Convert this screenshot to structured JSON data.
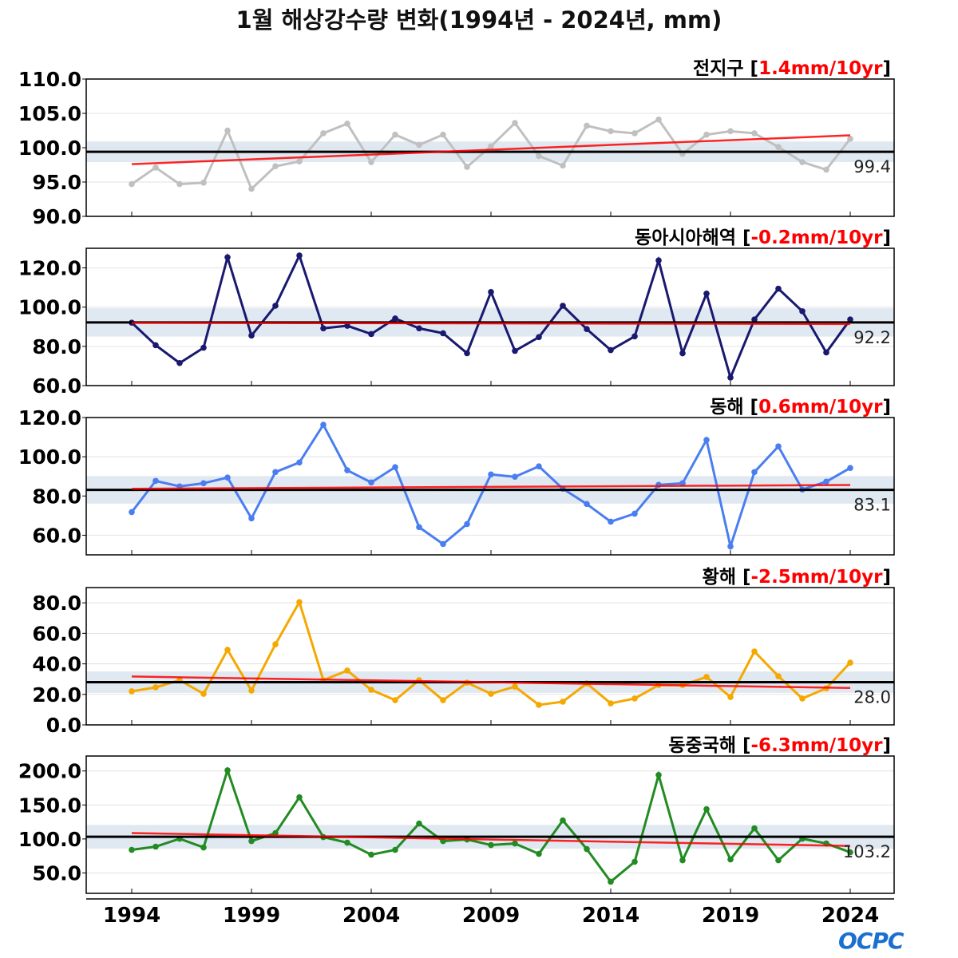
{
  "title": "1월 해상강수량 변화(1994년 - 2024년, mm)",
  "logo": "OCPC",
  "colors": {
    "trend": "#ff0000",
    "mean": "#000000",
    "band": "#dde6f0"
  },
  "chart_data": {
    "type": "line",
    "title": "1월 해상강수량 변화(1994년 - 2024년, mm)",
    "x": [
      1994,
      1995,
      1996,
      1997,
      1998,
      1999,
      2000,
      2001,
      2002,
      2003,
      2004,
      2005,
      2006,
      2007,
      2008,
      2009,
      2010,
      2011,
      2012,
      2013,
      2014,
      2015,
      2016,
      2017,
      2018,
      2019,
      2020,
      2021,
      2022,
      2023,
      2024
    ],
    "xticks": [
      "1994",
      "1999",
      "2004",
      "2009",
      "2014",
      "2019",
      "2024"
    ],
    "panels": [
      {
        "name": "전지구",
        "trend_label": "1.4mm/10yr",
        "color": "#c0c0c0",
        "ylim": [
          90,
          110
        ],
        "yticks": [
          "90.0",
          "95.0",
          "100.0",
          "105.0",
          "110.0"
        ],
        "mean": 99.4,
        "mean_label": "99.4",
        "band": 1.5,
        "trend": [
          97.6,
          101.8
        ],
        "values": [
          94.7,
          97.1,
          94.7,
          94.9,
          102.5,
          94.0,
          97.3,
          98.0,
          102.1,
          103.5,
          97.9,
          101.9,
          100.4,
          101.9,
          97.2,
          100.2,
          103.6,
          98.8,
          97.4,
          103.2,
          102.4,
          102.1,
          104.1,
          99.1,
          101.9,
          102.4,
          102.1,
          100.1,
          97.9,
          96.8,
          101.3
        ]
      },
      {
        "name": "동아시아해역",
        "trend_label": "-0.2mm/10yr",
        "color": "#191970",
        "ylim": [
          60,
          130
        ],
        "yticks": [
          "60.0",
          "80.0",
          "100.0",
          "120.0"
        ],
        "mean": 92.2,
        "mean_label": "92.2",
        "band": 7.2,
        "trend": [
          92.0,
          91.4
        ],
        "values": [
          92.1,
          80.6,
          71.5,
          79.3,
          125.4,
          85.5,
          100.7,
          126.3,
          89.2,
          90.5,
          86.3,
          94.2,
          89.2,
          86.7,
          76.5,
          107.7,
          77.7,
          84.7,
          100.7,
          88.8,
          78.1,
          85.1,
          123.8,
          76.5,
          106.9,
          64.1,
          93.7,
          109.4,
          97.9,
          76.9,
          93.7
        ]
      },
      {
        "name": "동해",
        "trend_label": "0.6mm/10yr",
        "color": "#4a7ef0",
        "ylim": [
          50,
          120
        ],
        "yticks": [
          "60.0",
          "80.0",
          "100.0",
          "120.0"
        ],
        "mean": 83.1,
        "mean_label": "83.1",
        "band": 7,
        "trend": [
          83.7,
          85.6
        ],
        "values": [
          71.8,
          87.7,
          84.9,
          86.5,
          89.4,
          68.6,
          92.2,
          97.1,
          116.3,
          93.1,
          86.9,
          94.7,
          64.1,
          55.5,
          65.7,
          91.0,
          89.8,
          95.1,
          83.7,
          75.9,
          66.9,
          71.0,
          85.7,
          86.5,
          108.6,
          54.3,
          92.2,
          105.3,
          83.3,
          87.3,
          94.3
        ]
      },
      {
        "name": "황해",
        "trend_label": "-2.5mm/10yr",
        "color": "#f5a800",
        "ylim": [
          0,
          90
        ],
        "yticks": [
          "0.0",
          "20.0",
          "40.0",
          "60.0",
          "80.0"
        ],
        "mean": 28.0,
        "mean_label": "28.0",
        "band": 7,
        "trend": [
          31.7,
          24.2
        ],
        "values": [
          22.0,
          24.6,
          29.3,
          20.4,
          49.2,
          22.5,
          52.8,
          80.5,
          29.3,
          35.6,
          23.0,
          16.2,
          29.3,
          16.2,
          27.7,
          20.4,
          25.1,
          13.1,
          15.2,
          27.2,
          14.1,
          17.3,
          26.1,
          26.1,
          31.4,
          18.3,
          48.1,
          31.9,
          17.3,
          24.0,
          40.8
        ]
      },
      {
        "name": "동중국해",
        "trend_label": "-6.3mm/10yr",
        "color": "#228b22",
        "ylim": [
          20,
          222
        ],
        "yticks": [
          "50.0",
          "100.0",
          "150.0",
          "200.0"
        ],
        "mean": 103.2,
        "mean_label": "103.2",
        "band": 17.5,
        "trend": [
          108.7,
          89.7
        ],
        "values": [
          84,
          88.7,
          100.4,
          87.5,
          201,
          96.8,
          108.6,
          161.3,
          102.7,
          94.5,
          76.9,
          84,
          122.7,
          96.8,
          99.2,
          91,
          93.3,
          78.1,
          127.3,
          85.1,
          37.1,
          66.4,
          194.1,
          68.7,
          143.8,
          69.9,
          115.6,
          68.7,
          100.4,
          93.3,
          80.4
        ]
      }
    ]
  }
}
